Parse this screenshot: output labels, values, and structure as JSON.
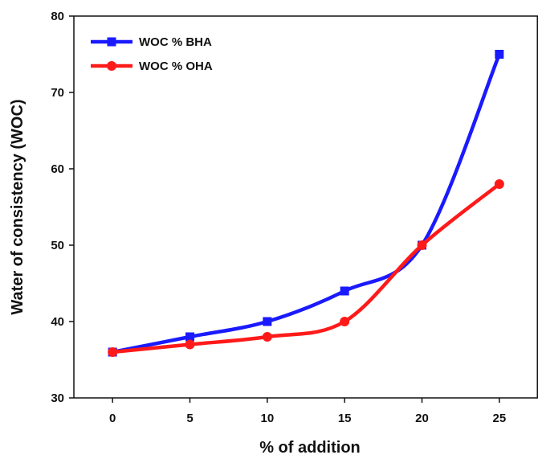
{
  "chart_data": {
    "type": "line",
    "xlabel": "% of addition",
    "ylabel": "Water of consistency (WOC)",
    "x": [
      0,
      5,
      10,
      15,
      20,
      25
    ],
    "xlim": [
      -2.5,
      27.5
    ],
    "ylim": [
      30,
      80
    ],
    "xticks": [
      0,
      5,
      10,
      15,
      20,
      25
    ],
    "yticks": [
      30,
      40,
      50,
      60,
      70,
      80
    ],
    "grid": false,
    "legend_position": "top-left",
    "smooth": true,
    "series": [
      {
        "name": "WOC % BHA",
        "values": [
          36,
          38,
          40,
          44,
          50,
          75
        ],
        "color": "#1a1aff",
        "marker": "square"
      },
      {
        "name": "WOC % OHA",
        "values": [
          36,
          37,
          38,
          40,
          50,
          58
        ],
        "color": "#ff1a1a",
        "marker": "circle"
      }
    ]
  }
}
